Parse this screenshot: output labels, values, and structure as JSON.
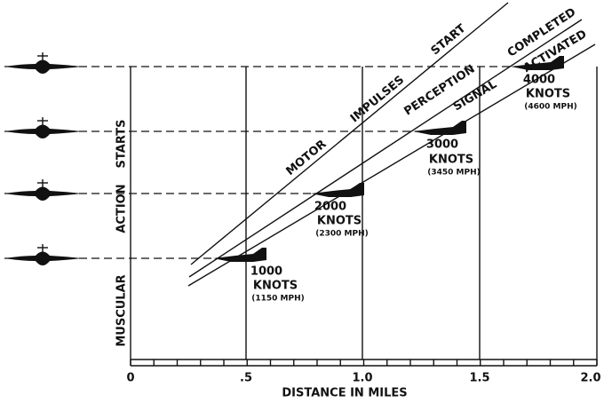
{
  "axis": {
    "label": "DISTANCE IN MILES",
    "ticks": [
      "0",
      ".5",
      "1.0",
      "1.5",
      "2.0"
    ]
  },
  "vertical_label": [
    "MUSCULAR",
    "ACTION",
    "STARTS"
  ],
  "lines": [
    {
      "words": [
        "MOTOR",
        "IMPULSES",
        "START"
      ]
    },
    {
      "words": [
        "PERCEPTION",
        "COMPLETED"
      ]
    },
    {
      "words": [
        "SIGNAL",
        "ACTIVATED"
      ]
    }
  ],
  "speeds": [
    {
      "knots": "1000",
      "unit": "KNOTS",
      "mph": "(1150 MPH)"
    },
    {
      "knots": "2000",
      "unit": "KNOTS",
      "mph": "(2300 MPH)"
    },
    {
      "knots": "3000",
      "unit": "KNOTS",
      "mph": "(3450 MPH)"
    },
    {
      "knots": "4000",
      "unit": "KNOTS",
      "mph": "(4600 MPH)"
    }
  ]
}
